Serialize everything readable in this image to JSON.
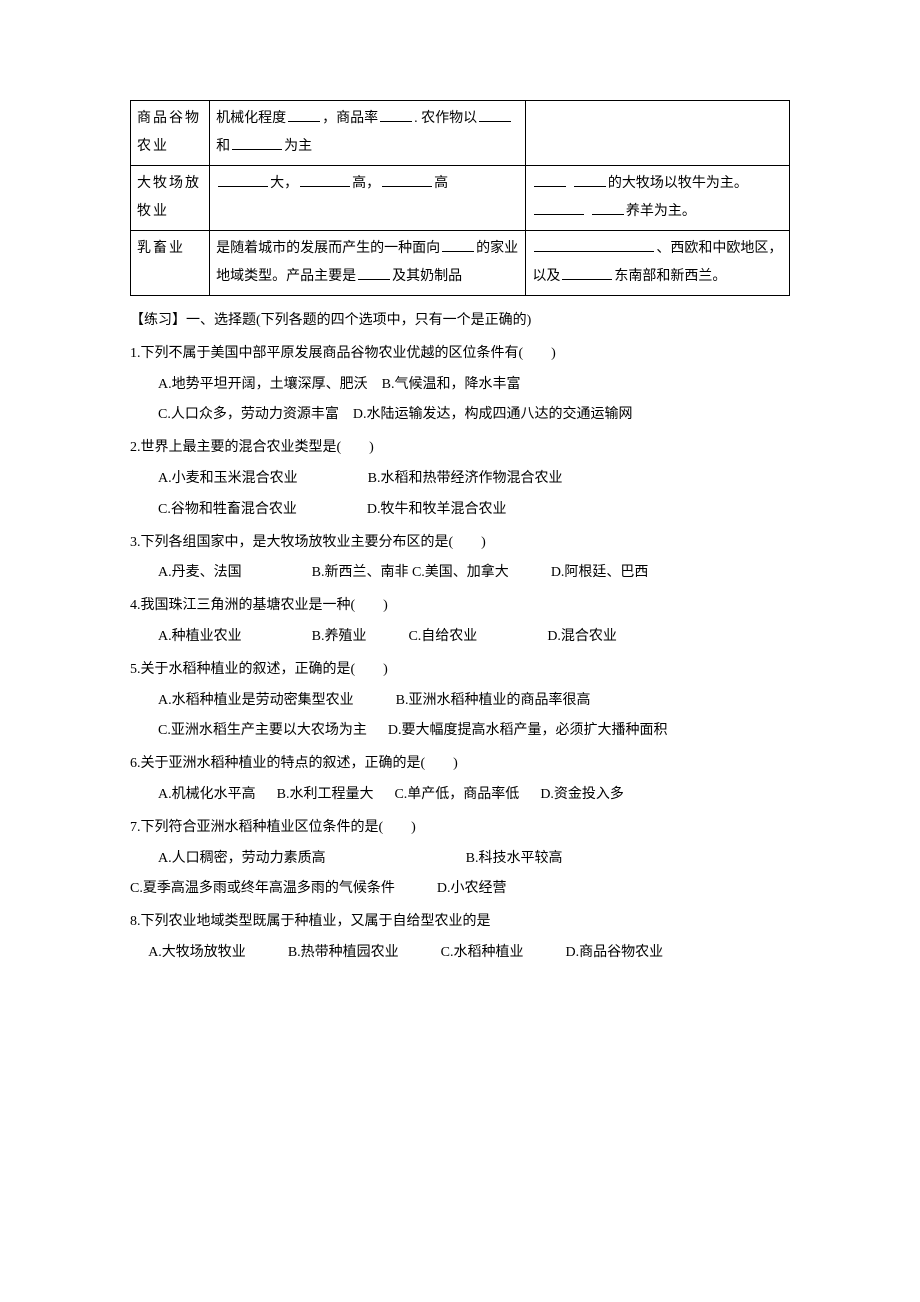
{
  "table": {
    "rows": [
      {
        "col1": "商品谷物农业",
        "col2_parts": {
          "p1": "机械化程度",
          "p2": "，商品率",
          "p3": ". 农作物以",
          "p4": "和",
          "p5": "为主"
        },
        "col3": ""
      },
      {
        "col1": "大牧场放牧业",
        "col2_parts": {
          "p1": "大，",
          "p2": "高，",
          "p3": "高"
        },
        "col3_parts": {
          "p1": "的大牧场以牧牛为主。",
          "p2": "养羊为主。"
        }
      },
      {
        "col1": "乳畜业",
        "col2_parts": {
          "p1": "是随着城市的发展而产生的一种面向",
          "p2": "的家业地域类型。产品主要是",
          "p3": "及其奶制品"
        },
        "col3_parts": {
          "p1": "、西欧和中欧地区，以及",
          "p2": "东南部和新西兰。"
        }
      }
    ]
  },
  "practice_header": "【练习】一、选择题(下列各题的四个选项中，只有一个是正确的)",
  "q1": {
    "stem": "1.下列不属于美国中部平原发展商品谷物农业优越的区位条件有(　　)",
    "optA": "A.地势平坦开阔，土壤深厚、肥沃",
    "optB": "B.气候温和，降水丰富",
    "optC": "C.人口众多，劳动力资源丰富",
    "optD": "D.水陆运输发达，构成四通八达的交通运输网"
  },
  "q2": {
    "stem": "2.世界上最主要的混合农业类型是(　　)",
    "optA": "A.小麦和玉米混合农业",
    "optB": "B.水稻和热带经济作物混合农业",
    "optC": "C.谷物和牲畜混合农业",
    "optD": "D.牧牛和牧羊混合农业"
  },
  "q3": {
    "stem": "3.下列各组国家中，是大牧场放牧业主要分布区的是(　　)",
    "optA": "A.丹麦、法国",
    "optB": "B.新西兰、南非",
    "optC": "C.美国、加拿大",
    "optD": "D.阿根廷、巴西"
  },
  "q4": {
    "stem": "4.我国珠江三角洲的基塘农业是一种(　　)",
    "optA": "A.种植业农业",
    "optB": "B.养殖业",
    "optC": "C.自给农业",
    "optD": "D.混合农业"
  },
  "q5": {
    "stem": "5.关于水稻种植业的叙述，正确的是(　　)",
    "optA": "A.水稻种植业是劳动密集型农业",
    "optB": "B.亚洲水稻种植业的商品率很高",
    "optC": "C.亚洲水稻生产主要以大农场为主",
    "optD": "D.要大幅度提高水稻产量，必须扩大播种面积"
  },
  "q6": {
    "stem": "6.关于亚洲水稻种植业的特点的叙述，正确的是(　　)",
    "optA": "A.机械化水平高",
    "optB": "B.水利工程量大",
    "optC": "C.单产低，商品率低",
    "optD": "D.资金投入多"
  },
  "q7": {
    "stem": "7.下列符合亚洲水稻种植业区位条件的是(　　)",
    "optA": "A.人口稠密，劳动力素质高",
    "optB": "B.科技水平较高",
    "optC": "C.夏季高温多雨或终年高温多雨的气候条件",
    "optD": "D.小农经营"
  },
  "q8": {
    "stem": "8.下列农业地域类型既属于种植业，又属于自给型农业的是",
    "optA": "A.大牧场放牧业",
    "optB": "B.热带种植园农业",
    "optC": "C.水稻种植业",
    "optD": "D.商品谷物农业"
  }
}
